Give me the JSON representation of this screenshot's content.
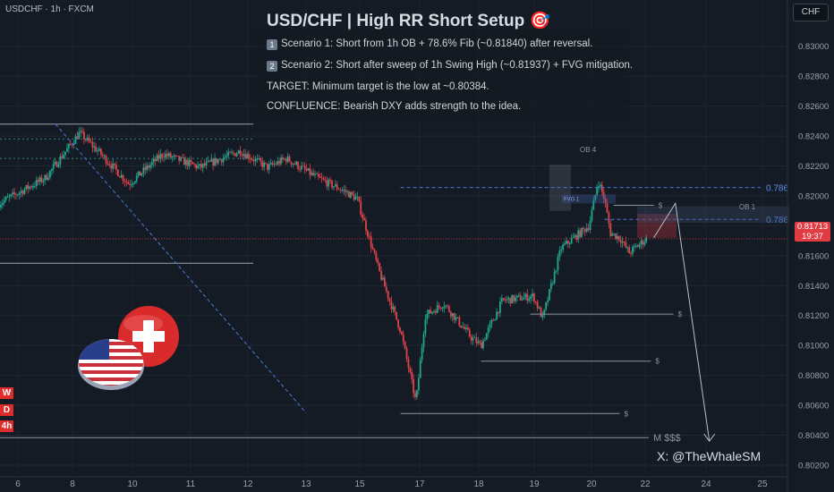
{
  "symbol_label": "USDCHF · 1h · FXCM",
  "currency_button": "CHF",
  "idea": {
    "title": "USD/CHF | High RR Short Setup 🎯",
    "notes": [
      {
        "badge": "1",
        "text": "Scenario 1: Short from 1h OB + 78.6% Fib (~0.81840) after reversal."
      },
      {
        "badge": "2",
        "text": "Scenario 2: Short after sweep of 1h Swing High (~0.81937) + FVG mitigation."
      },
      {
        "badge": "",
        "text": "TARGET: Minimum target is the low at ~0.80384."
      },
      {
        "badge": "",
        "text": "CONFLUENCE: Bearish DXY adds strength to the idea."
      }
    ]
  },
  "timeframe_tags": [
    "W",
    "D",
    "4h"
  ],
  "watermark": "X: @TheWhaleSM",
  "current_price": {
    "price": "0.81713",
    "countdown": "19:37"
  },
  "colors": {
    "background": "#141b24",
    "up": "#22a58f",
    "down": "#e0434b",
    "fib": "#4a7bd8",
    "accent_red": "#e03c43"
  },
  "chart_data": {
    "type": "candlestick",
    "title": "USD/CHF | High RR Short Setup 🎯",
    "ylim": [
      0.8014,
      0.8313
    ],
    "y_ticks": [
      "0.83000",
      "0.82800",
      "0.82600",
      "0.82400",
      "0.82200",
      "0.82000",
      "0.81800",
      "0.81600",
      "0.81400",
      "0.81200",
      "0.81000",
      "0.80800",
      "0.80600",
      "0.80400",
      "0.80200"
    ],
    "x_ticks": [
      "6",
      "8",
      "10",
      "11",
      "12",
      "13",
      "15",
      "17",
      "18",
      "19",
      "20",
      "22",
      "24",
      "25"
    ],
    "grid": true,
    "price_path": [
      [
        0,
        0.8195
      ],
      [
        1.5,
        0.8212
      ],
      [
        2.6,
        0.8242
      ],
      [
        3.2,
        0.823
      ],
      [
        4.2,
        0.8208
      ],
      [
        5.3,
        0.8228
      ],
      [
        6.5,
        0.8219
      ],
      [
        7.8,
        0.823
      ],
      [
        8.7,
        0.8219
      ],
      [
        9.3,
        0.8225
      ],
      [
        10.3,
        0.8212
      ],
      [
        11.2,
        0.8203
      ],
      [
        11.6,
        0.8198
      ],
      [
        12.3,
        0.815
      ],
      [
        13.0,
        0.811
      ],
      [
        13.5,
        0.8062
      ],
      [
        13.8,
        0.812
      ],
      [
        14.4,
        0.8128
      ],
      [
        15.3,
        0.8105
      ],
      [
        15.6,
        0.81
      ],
      [
        16.3,
        0.813
      ],
      [
        17.3,
        0.8133
      ],
      [
        17.6,
        0.8118
      ],
      [
        18.2,
        0.8165
      ],
      [
        18.8,
        0.8175
      ],
      [
        19.1,
        0.818
      ],
      [
        19.4,
        0.821
      ],
      [
        19.6,
        0.8198
      ],
      [
        19.8,
        0.8175
      ],
      [
        20.1,
        0.8172
      ],
      [
        20.4,
        0.8162
      ],
      [
        20.7,
        0.8167
      ],
      [
        21.0,
        0.8172
      ]
    ],
    "levels": [
      {
        "label": "0.786",
        "price": 0.82056,
        "style": "dashed-blue",
        "x_from": 13.0
      },
      {
        "label": "0.786",
        "price": 0.81843,
        "style": "dashed-blue",
        "x_from": 19.6
      },
      {
        "label": "OB 4",
        "price": 0.8215
      },
      {
        "label": "OB 1",
        "price": 0.8188
      },
      {
        "label": "FVG 1",
        "price": 0.81983
      },
      {
        "label": "M $$$",
        "price": 0.80384,
        "x_from": 0
      },
      {
        "label": "$",
        "price": 0.80545,
        "x_from": 13.0
      },
      {
        "label": "$",
        "price": 0.80895,
        "x_from": 15.6
      },
      {
        "label": "$",
        "price": 0.8121,
        "x_from": 17.2
      },
      {
        "label": "$",
        "price": 0.81937,
        "x_from": 19.9
      }
    ],
    "projection": {
      "from": [
        21.2,
        0.8172
      ],
      "peak": [
        21.9,
        0.8195
      ],
      "to": [
        23.0,
        0.8036
      ]
    },
    "last_price": 0.81713
  }
}
